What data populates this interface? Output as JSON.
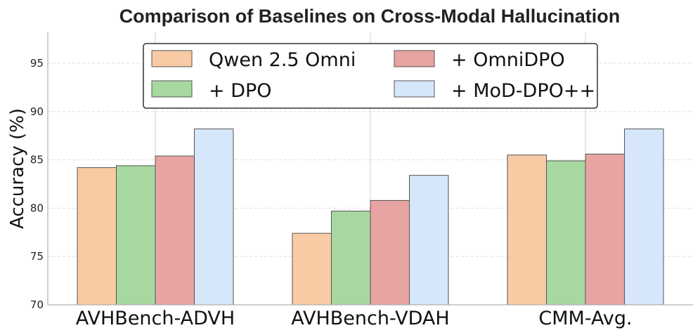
{
  "chart_data": {
    "type": "bar",
    "title": "Comparison of Baselines on Cross-Modal Hallucination",
    "xlabel": "",
    "ylabel": "Accuracy (%)",
    "ylim": [
      70,
      98.2
    ],
    "yticks": [
      70,
      75,
      80,
      85,
      90,
      95
    ],
    "grid": true,
    "legend_position": "top-center",
    "categories": [
      "AVHBench-ADVH",
      "AVHBench-VDAH",
      "CMM-Avg."
    ],
    "series": [
      {
        "name": "Qwen 2.5 Omni",
        "color": "#f8cba4",
        "values": [
          84.2,
          77.4,
          85.5
        ]
      },
      {
        "name": "+ DPO",
        "color": "#a6d8a0",
        "values": [
          84.4,
          79.7,
          84.9
        ]
      },
      {
        "name": "+ OmniDPO",
        "color": "#e8a3a3",
        "values": [
          85.4,
          80.8,
          85.6
        ]
      },
      {
        "name": "+ MoD-DPO++",
        "color": "#d6e6fb",
        "values": [
          88.2,
          83.4,
          88.2
        ]
      }
    ]
  }
}
